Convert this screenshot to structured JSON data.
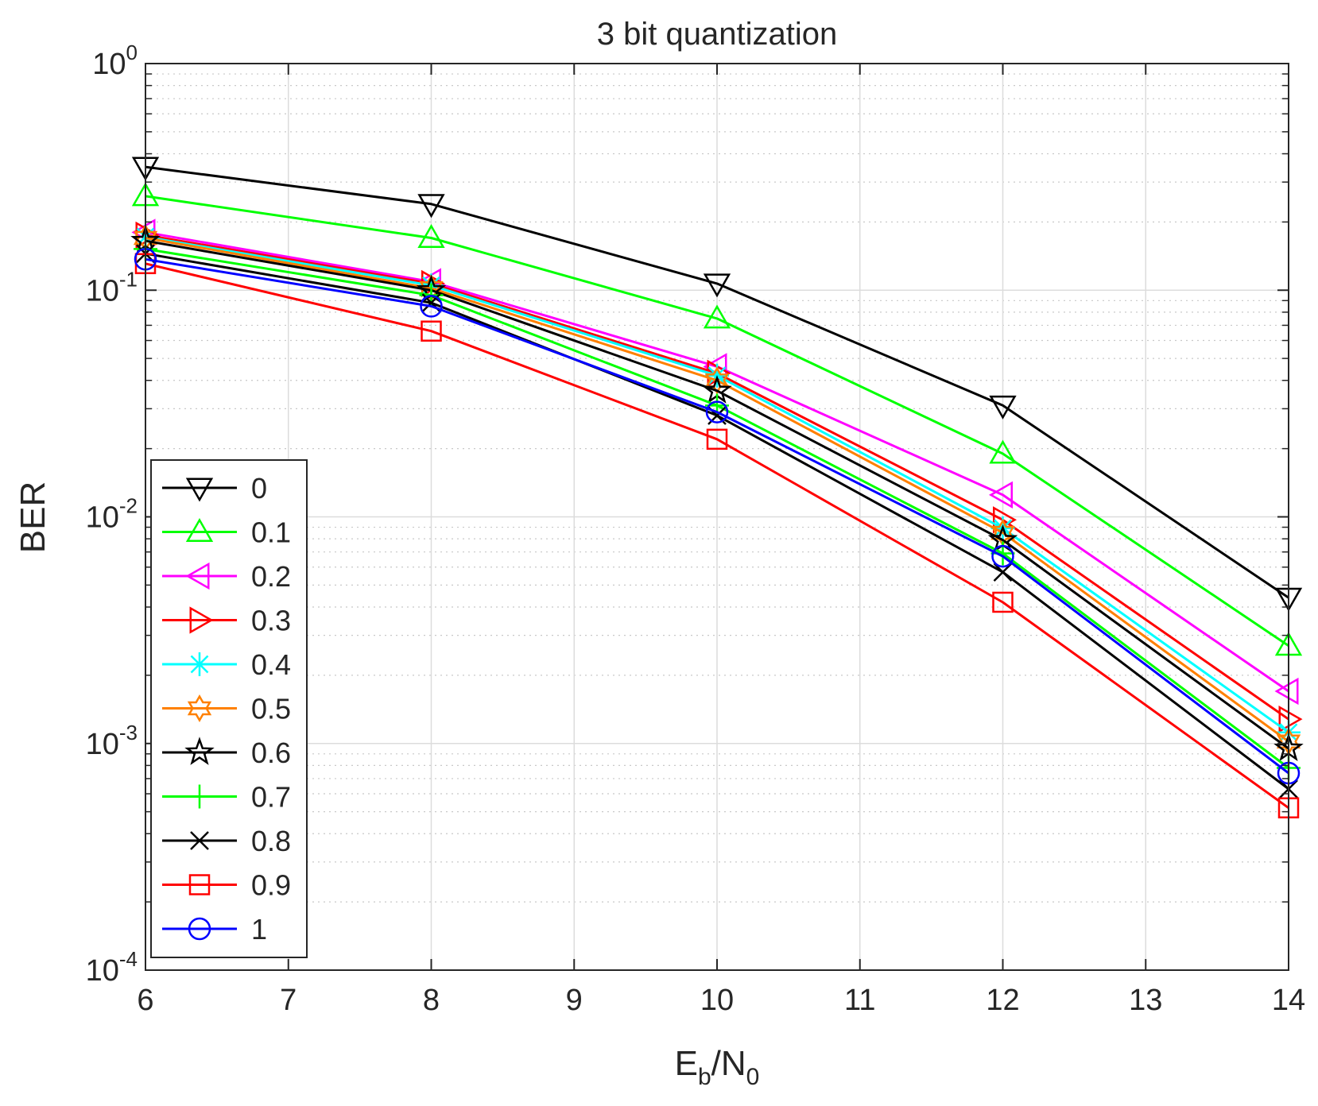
{
  "chart_data": {
    "type": "line",
    "title": "3 bit quantization",
    "xlabel": {
      "main": "E",
      "sub1": "b",
      "mid": "/N",
      "sub2": "0"
    },
    "ylabel": "BER",
    "xlim": [
      6,
      14
    ],
    "ylim_exp": [
      -4,
      0
    ],
    "yscale": "log",
    "grid": true,
    "minor_grid": true,
    "legend_position": "lower-left",
    "xticks": [
      "6",
      "7",
      "8",
      "9",
      "10",
      "11",
      "12",
      "13",
      "14"
    ],
    "yticks": [
      {
        "base": "10",
        "exp": "-4"
      },
      {
        "base": "10",
        "exp": "-3"
      },
      {
        "base": "10",
        "exp": "-2"
      },
      {
        "base": "10",
        "exp": "-1"
      },
      {
        "base": "10",
        "exp": "0"
      }
    ],
    "x": [
      6,
      8,
      10,
      12,
      14
    ],
    "series": [
      {
        "name": "0",
        "color": "#000000",
        "marker": "triangle-down",
        "values": [
          0.35,
          0.24,
          0.107,
          0.031,
          0.0044
        ]
      },
      {
        "name": "0.1",
        "color": "#00ff00",
        "marker": "triangle-up",
        "values": [
          0.26,
          0.17,
          0.075,
          0.019,
          0.0027
        ]
      },
      {
        "name": "0.2",
        "color": "#ff00ff",
        "marker": "triangle-left",
        "values": [
          0.18,
          0.109,
          0.046,
          0.0125,
          0.0017
        ]
      },
      {
        "name": "0.3",
        "color": "#ff0000",
        "marker": "triangle-right",
        "values": [
          0.175,
          0.107,
          0.043,
          0.0097,
          0.00128
        ]
      },
      {
        "name": "0.4",
        "color": "#00ffff",
        "marker": "asterisk",
        "values": [
          0.172,
          0.105,
          0.042,
          0.0089,
          0.00112
        ]
      },
      {
        "name": "0.5",
        "color": "#ff8000",
        "marker": "hexagram",
        "values": [
          0.17,
          0.102,
          0.04,
          0.0085,
          0.00102
        ]
      },
      {
        "name": "0.6",
        "color": "#000000",
        "marker": "pentagram",
        "values": [
          0.165,
          0.1,
          0.036,
          0.0079,
          0.00095
        ]
      },
      {
        "name": "0.7",
        "color": "#00ff00",
        "marker": "plus",
        "values": [
          0.152,
          0.095,
          0.031,
          0.0069,
          0.00078
        ]
      },
      {
        "name": "0.8",
        "color": "#000000",
        "marker": "x",
        "values": [
          0.145,
          0.088,
          0.028,
          0.0057,
          0.00063
        ]
      },
      {
        "name": "0.9",
        "color": "#ff0000",
        "marker": "square",
        "values": [
          0.131,
          0.066,
          0.022,
          0.0042,
          0.00052
        ]
      },
      {
        "name": "1",
        "color": "#0000ff",
        "marker": "circle",
        "values": [
          0.137,
          0.085,
          0.029,
          0.0067,
          0.00074
        ]
      }
    ]
  }
}
